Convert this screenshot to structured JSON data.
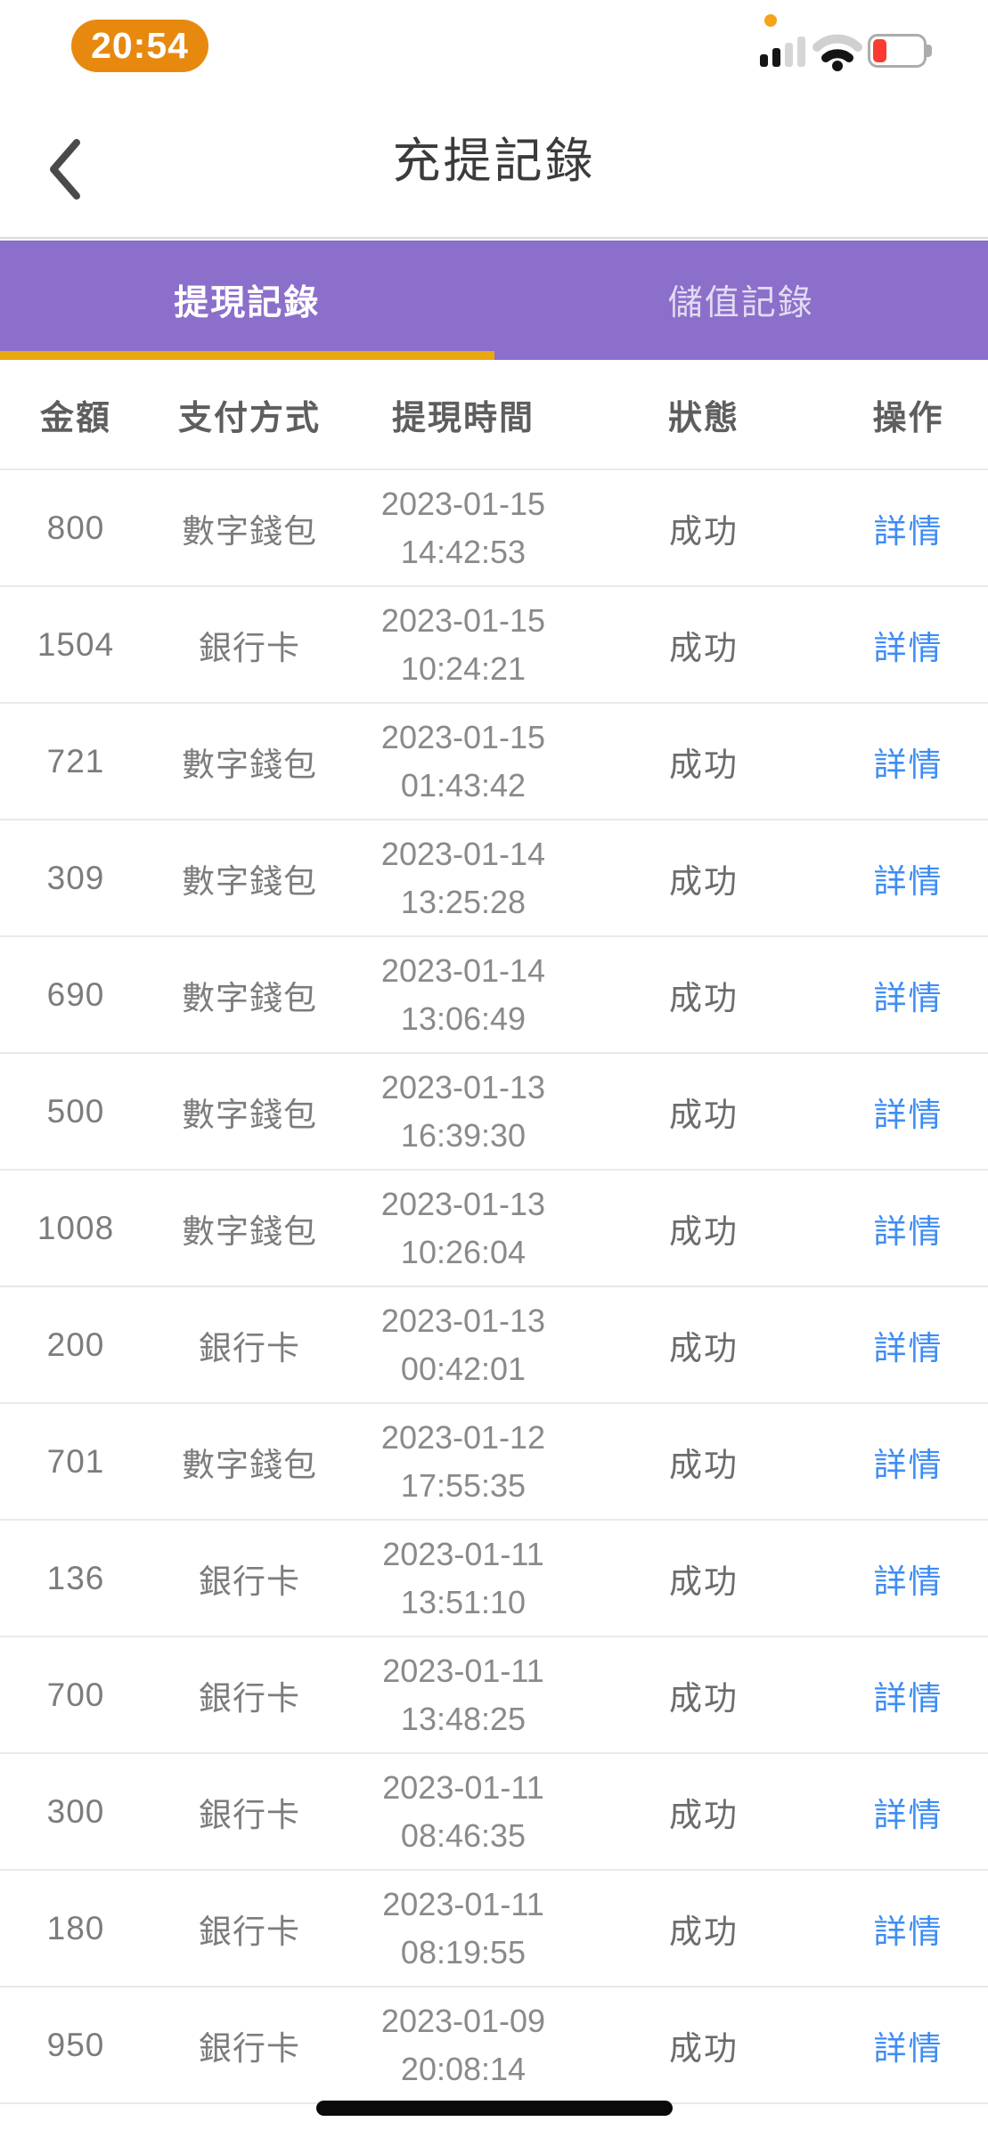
{
  "status_bar": {
    "time": "20:54",
    "orange_dot": "recording-indicator",
    "signal_bars_filled": 2,
    "signal_bars_total": 4,
    "wifi": "medium",
    "battery": "low-red"
  },
  "nav": {
    "title": "充提記錄",
    "back_icon": "chevron-left"
  },
  "tabs": [
    {
      "id": "tab-withdrawal-records",
      "label": "提現記錄",
      "active": true
    },
    {
      "id": "tab-deposit-records",
      "label": "儲值記錄",
      "active": false
    }
  ],
  "table": {
    "columns": [
      "金額",
      "支付方式",
      "提現時間",
      "狀態",
      "操作"
    ],
    "rows": [
      {
        "amount": "800",
        "method": "數字錢包",
        "date": "2023-01-15",
        "time": "14:42:53",
        "status": "成功",
        "action": "詳情"
      },
      {
        "amount": "1504",
        "method": "銀行卡",
        "date": "2023-01-15",
        "time": "10:24:21",
        "status": "成功",
        "action": "詳情"
      },
      {
        "amount": "721",
        "method": "數字錢包",
        "date": "2023-01-15",
        "time": "01:43:42",
        "status": "成功",
        "action": "詳情"
      },
      {
        "amount": "309",
        "method": "數字錢包",
        "date": "2023-01-14",
        "time": "13:25:28",
        "status": "成功",
        "action": "詳情"
      },
      {
        "amount": "690",
        "method": "數字錢包",
        "date": "2023-01-14",
        "time": "13:06:49",
        "status": "成功",
        "action": "詳情"
      },
      {
        "amount": "500",
        "method": "數字錢包",
        "date": "2023-01-13",
        "time": "16:39:30",
        "status": "成功",
        "action": "詳情"
      },
      {
        "amount": "1008",
        "method": "數字錢包",
        "date": "2023-01-13",
        "time": "10:26:04",
        "status": "成功",
        "action": "詳情"
      },
      {
        "amount": "200",
        "method": "銀行卡",
        "date": "2023-01-13",
        "time": "00:42:01",
        "status": "成功",
        "action": "詳情"
      },
      {
        "amount": "701",
        "method": "數字錢包",
        "date": "2023-01-12",
        "time": "17:55:35",
        "status": "成功",
        "action": "詳情"
      },
      {
        "amount": "136",
        "method": "銀行卡",
        "date": "2023-01-11",
        "time": "13:51:10",
        "status": "成功",
        "action": "詳情"
      },
      {
        "amount": "700",
        "method": "銀行卡",
        "date": "2023-01-11",
        "time": "13:48:25",
        "status": "成功",
        "action": "詳情"
      },
      {
        "amount": "300",
        "method": "銀行卡",
        "date": "2023-01-11",
        "time": "08:46:35",
        "status": "成功",
        "action": "詳情"
      },
      {
        "amount": "180",
        "method": "銀行卡",
        "date": "2023-01-11",
        "time": "08:19:55",
        "status": "成功",
        "action": "詳情"
      },
      {
        "amount": "950",
        "method": "銀行卡",
        "date": "2023-01-09",
        "time": "20:08:14",
        "status": "成功",
        "action": "詳情"
      }
    ]
  },
  "colors": {
    "purple": "#8C6FCB",
    "gold": "#E7A90F",
    "link": "#3E8CF4",
    "pill": "#E8890F",
    "dot": "#F5A31B",
    "battery_red": "#FB3B2F"
  }
}
